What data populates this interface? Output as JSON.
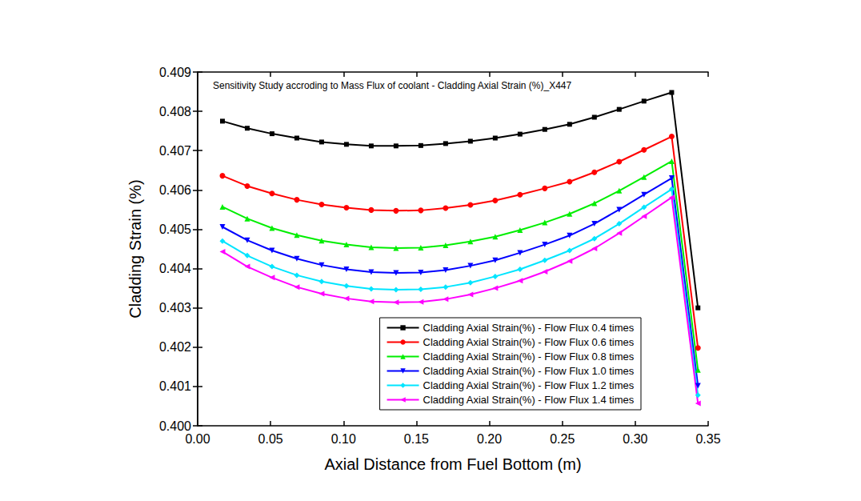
{
  "chart_data": {
    "type": "line",
    "title": "Sensitivity Study accroding to Mass Flux of coolant - Cladding Axial Strain (%)_X447",
    "x_label": "Axial Distance from Fuel Bottom (m)",
    "y_label": "Cladding Strain (%)",
    "x": [
      0.017,
      0.034,
      0.051,
      0.068,
      0.085,
      0.102,
      0.119,
      0.136,
      0.153,
      0.17,
      0.187,
      0.204,
      0.221,
      0.238,
      0.255,
      0.272,
      0.289,
      0.306,
      0.325,
      0.343
    ],
    "series": [
      {
        "name": "Cladding Axial Strain(%) - Flow Flux 0.4 times",
        "color": "#000000",
        "marker": "square",
        "line_style": "solid",
        "values": [
          0.40775,
          0.40757,
          0.40743,
          0.40732,
          0.40722,
          0.40716,
          0.40712,
          0.40712,
          0.40713,
          0.40718,
          0.40724,
          0.40732,
          0.40742,
          0.40754,
          0.40767,
          0.40785,
          0.40805,
          0.40826,
          0.40848,
          0.403
        ]
      },
      {
        "name": "Cladding Axial Strain(%) - Flow Flux 0.6 times",
        "color": "#ff0000",
        "marker": "circle",
        "line_style": "solid",
        "values": [
          0.40636,
          0.4061,
          0.40591,
          0.40575,
          0.40563,
          0.40555,
          0.40549,
          0.40547,
          0.40548,
          0.40554,
          0.40562,
          0.40573,
          0.40588,
          0.40604,
          0.40621,
          0.40645,
          0.40672,
          0.40702,
          0.40736,
          0.40198
        ]
      },
      {
        "name": "Cladding Axial Strain(%) - Flow Flux 0.8 times",
        "color": "#00ee00",
        "marker": "triangle-up",
        "line_style": "solid",
        "values": [
          0.40557,
          0.40527,
          0.40503,
          0.40485,
          0.40471,
          0.40461,
          0.40454,
          0.40452,
          0.40453,
          0.40459,
          0.40469,
          0.40481,
          0.40498,
          0.40517,
          0.40539,
          0.40566,
          0.40598,
          0.40633,
          0.40673,
          0.40142
        ]
      },
      {
        "name": "Cladding Axial Strain(%) - Flow Flux 1.0 times",
        "color": "#0000ff",
        "marker": "triangle-down",
        "line_style": "solid",
        "values": [
          0.40506,
          0.40472,
          0.40446,
          0.40425,
          0.40409,
          0.40398,
          0.40391,
          0.40389,
          0.4039,
          0.40396,
          0.40407,
          0.40421,
          0.4044,
          0.40461,
          0.40484,
          0.40514,
          0.4055,
          0.40588,
          0.4063,
          0.40102
        ]
      },
      {
        "name": "Cladding Axial Strain(%) - Flow Flux 1.2 times",
        "color": "#00e5ff",
        "marker": "diamond",
        "line_style": "solid",
        "values": [
          0.4047,
          0.40433,
          0.40405,
          0.40383,
          0.40367,
          0.40356,
          0.40348,
          0.40346,
          0.40347,
          0.40353,
          0.40364,
          0.4038,
          0.40398,
          0.40421,
          0.40446,
          0.40476,
          0.40514,
          0.40556,
          0.40602,
          0.40078
        ]
      },
      {
        "name": "Cladding Axial Strain(%) - Flow Flux 1.4 times",
        "color": "#ff00ff",
        "marker": "triangle-left",
        "line_style": "solid",
        "values": [
          0.40443,
          0.40405,
          0.40377,
          0.40353,
          0.40336,
          0.40324,
          0.40316,
          0.40314,
          0.40315,
          0.40322,
          0.40334,
          0.4035,
          0.40369,
          0.40392,
          0.40419,
          0.40451,
          0.4049,
          0.40533,
          0.40581,
          0.40057
        ]
      }
    ],
    "xlim": [
      0,
      0.35
    ],
    "xticks": [
      {
        "value": 0,
        "label": "0.00"
      },
      {
        "value": 0.05,
        "label": "0.05"
      },
      {
        "value": 0.1,
        "label": "0.10"
      },
      {
        "value": 0.15,
        "label": "0.15"
      },
      {
        "value": 0.2,
        "label": "0.20"
      },
      {
        "value": 0.25,
        "label": "0.25"
      },
      {
        "value": 0.3,
        "label": "0.30"
      },
      {
        "value": 0.35,
        "label": "0.35"
      }
    ],
    "ylim": [
      0.4,
      0.409
    ],
    "yticks": [
      {
        "value": 0.4,
        "label": "0.400"
      },
      {
        "value": 0.401,
        "label": "0.401"
      },
      {
        "value": 0.402,
        "label": "0.402"
      },
      {
        "value": 0.403,
        "label": "0.403"
      },
      {
        "value": 0.404,
        "label": "0.404"
      },
      {
        "value": 0.405,
        "label": "0.405"
      },
      {
        "value": 0.406,
        "label": "0.406"
      },
      {
        "value": 0.407,
        "label": "0.407"
      },
      {
        "value": 0.408,
        "label": "0.408"
      },
      {
        "value": 0.409,
        "label": "0.409"
      }
    ],
    "grid": false,
    "legend": "lower right"
  }
}
